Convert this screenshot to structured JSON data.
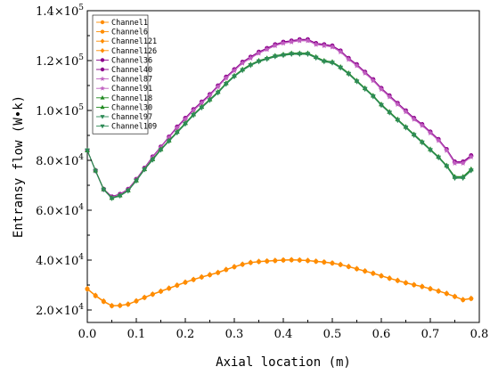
{
  "chart_data": {
    "type": "line",
    "xlabel": "Axial location (m)",
    "ylabel": "Entransy flow (W•k)",
    "xlim": [
      0,
      0.8
    ],
    "ylim": [
      15000,
      140000
    ],
    "x_ticks": [
      {
        "value": 0.0,
        "label": "0.0"
      },
      {
        "value": 0.1,
        "label": "0.1"
      },
      {
        "value": 0.2,
        "label": "0.2"
      },
      {
        "value": 0.3,
        "label": "0.3"
      },
      {
        "value": 0.4,
        "label": "0.4"
      },
      {
        "value": 0.5,
        "label": "0.5"
      },
      {
        "value": 0.6,
        "label": "0.6"
      },
      {
        "value": 0.7,
        "label": "0.7"
      },
      {
        "value": 0.8,
        "label": "0.8"
      }
    ],
    "y_ticks": [
      {
        "value": 20000,
        "mantissa": "2.0",
        "exponent": "4"
      },
      {
        "value": 40000,
        "mantissa": "4.0",
        "exponent": "4"
      },
      {
        "value": 60000,
        "mantissa": "6.0",
        "exponent": "4"
      },
      {
        "value": 80000,
        "mantissa": "8.0",
        "exponent": "4"
      },
      {
        "value": 100000,
        "mantissa": "1.0",
        "exponent": "5"
      },
      {
        "value": 120000,
        "mantissa": "1.2",
        "exponent": "5"
      },
      {
        "value": 140000,
        "mantissa": "1.4",
        "exponent": "5"
      }
    ],
    "grid": false,
    "legend_position": "top-left",
    "x": [
      0.0,
      0.0167,
      0.0333,
      0.05,
      0.0667,
      0.0833,
      0.1,
      0.1167,
      0.1333,
      0.15,
      0.1667,
      0.1833,
      0.2,
      0.2167,
      0.2333,
      0.25,
      0.2667,
      0.2833,
      0.3,
      0.3167,
      0.3333,
      0.35,
      0.3667,
      0.3833,
      0.4,
      0.4167,
      0.4333,
      0.45,
      0.4667,
      0.4833,
      0.5,
      0.5167,
      0.5333,
      0.55,
      0.5667,
      0.5833,
      0.6,
      0.6167,
      0.6333,
      0.65,
      0.6667,
      0.6833,
      0.7,
      0.7167,
      0.7333,
      0.75,
      0.7667,
      0.7833
    ],
    "series": [
      {
        "name": "Channel1",
        "color": "#FF8C00",
        "marker": "circle",
        "values": [
          28500,
          25800,
          23500,
          21700,
          21800,
          22300,
          23600,
          25000,
          26300,
          27500,
          28700,
          29900,
          31100,
          32200,
          33200,
          34100,
          35000,
          36200,
          37300,
          38300,
          39000,
          39400,
          39600,
          39800,
          40000,
          40100,
          40000,
          39800,
          39500,
          39200,
          38800,
          38200,
          37400,
          36500,
          35600,
          34700,
          33700,
          32700,
          31800,
          30900,
          30100,
          29400,
          28500,
          27600,
          26600,
          25400,
          24100,
          24600
        ]
      },
      {
        "name": "Channel6",
        "color": "#FF8C00",
        "marker": "circle",
        "values": [
          28300,
          25600,
          23300,
          21600,
          21700,
          22200,
          23500,
          24900,
          26200,
          27400,
          28600,
          29800,
          31000,
          32100,
          33100,
          34000,
          34900,
          36100,
          37200,
          38200,
          38900,
          39300,
          39500,
          39700,
          39900,
          40000,
          39900,
          39700,
          39400,
          39100,
          38700,
          38100,
          37300,
          36400,
          35500,
          34600,
          33600,
          32600,
          31700,
          30800,
          30000,
          29300,
          28400,
          27500,
          26500,
          25300,
          24000,
          24500
        ]
      },
      {
        "name": "Channel121",
        "color": "#FF8C00",
        "marker": "diamond",
        "values": [
          28400,
          25700,
          23400,
          21650,
          21750,
          22250,
          23550,
          24950,
          26250,
          27450,
          28650,
          29850,
          31050,
          32150,
          33150,
          34050,
          34950,
          36150,
          37250,
          38250,
          38950,
          39350,
          39550,
          39750,
          39950,
          40050,
          39950,
          39750,
          39450,
          39150,
          38750,
          38150,
          37350,
          36450,
          35550,
          34650,
          33650,
          32650,
          31750,
          30850,
          30050,
          29350,
          28450,
          27550,
          26550,
          25350,
          24050,
          24550
        ]
      },
      {
        "name": "Channel126",
        "color": "#FF8C00",
        "marker": "diamond",
        "values": [
          28600,
          25900,
          23600,
          21800,
          21900,
          22400,
          23700,
          25100,
          26400,
          27600,
          28800,
          30000,
          31200,
          32300,
          33300,
          34200,
          35100,
          36300,
          37400,
          38400,
          39100,
          39500,
          39700,
          39900,
          40100,
          40200,
          40100,
          39900,
          39600,
          39300,
          38900,
          38300,
          37500,
          36600,
          35700,
          34800,
          33800,
          32800,
          31900,
          31000,
          30200,
          29500,
          28600,
          27700,
          26700,
          25500,
          24200,
          24700
        ]
      },
      {
        "name": "Channel36",
        "color": "#8B008B",
        "marker": "circle",
        "values": [
          84000,
          76000,
          68500,
          65500,
          66500,
          68500,
          72500,
          77000,
          81500,
          85500,
          89500,
          93500,
          97000,
          100500,
          103500,
          106500,
          110000,
          113500,
          116500,
          119500,
          121500,
          123500,
          125000,
          126500,
          127500,
          128000,
          128500,
          128500,
          127000,
          126500,
          126000,
          124000,
          121000,
          118500,
          115500,
          112500,
          109000,
          106000,
          103000,
          100000,
          97000,
          94500,
          91500,
          88500,
          84500,
          79500,
          79500,
          82000
        ]
      },
      {
        "name": "Channel40",
        "color": "#8B008B",
        "marker": "circle",
        "values": [
          84000,
          75900,
          68400,
          65400,
          66400,
          68400,
          72400,
          76900,
          81300,
          85300,
          89300,
          93300,
          96800,
          100300,
          103300,
          106300,
          109800,
          113300,
          116300,
          119300,
          121300,
          123300,
          124800,
          126300,
          127300,
          127800,
          128300,
          128300,
          126800,
          126300,
          125800,
          123800,
          120800,
          118300,
          115300,
          112300,
          108800,
          105800,
          102800,
          99800,
          96800,
          94300,
          91300,
          88300,
          84300,
          79200,
          79200,
          81700
        ]
      },
      {
        "name": "Channel87",
        "color": "#C060C0",
        "marker": "star",
        "values": [
          84000,
          75800,
          68300,
          65300,
          66300,
          68300,
          72300,
          76800,
          81200,
          85200,
          89200,
          93100,
          96600,
          100100,
          103100,
          106100,
          109600,
          113100,
          116100,
          119100,
          121100,
          123100,
          124600,
          126100,
          127100,
          127600,
          128100,
          128100,
          126600,
          126100,
          125600,
          123600,
          120600,
          118100,
          115100,
          112100,
          108600,
          105600,
          102600,
          99600,
          96600,
          94100,
          91100,
          88100,
          84100,
          79000,
          79000,
          81500
        ]
      },
      {
        "name": "Channel91",
        "color": "#C060C0",
        "marker": "star",
        "values": [
          84000,
          75700,
          68200,
          65200,
          66200,
          68200,
          72200,
          76700,
          81100,
          85100,
          89100,
          92900,
          96400,
          99900,
          102900,
          105900,
          109400,
          112900,
          115900,
          118900,
          120900,
          122900,
          124400,
          125900,
          126900,
          127400,
          127900,
          127900,
          126400,
          125900,
          125400,
          123400,
          120400,
          117900,
          114900,
          111900,
          108400,
          105400,
          102400,
          99400,
          96400,
          93900,
          90900,
          87900,
          83900,
          78800,
          78800,
          81300
        ]
      },
      {
        "name": "Channel18",
        "color": "#228B22",
        "marker": "triangle-up",
        "values": [
          84000,
          76000,
          68500,
          65000,
          66000,
          68000,
          72000,
          76500,
          80500,
          84500,
          88000,
          91500,
          95000,
          98500,
          101500,
          104500,
          107500,
          111000,
          114000,
          116500,
          118500,
          120000,
          121000,
          122000,
          122500,
          123000,
          123000,
          123000,
          121500,
          120000,
          119500,
          117500,
          115000,
          112000,
          109000,
          106000,
          102500,
          99500,
          96500,
          93500,
          90500,
          87500,
          84500,
          81500,
          78000,
          73500,
          73500,
          76500
        ]
      },
      {
        "name": "Channel30",
        "color": "#228B22",
        "marker": "triangle-up",
        "values": [
          84000,
          75900,
          68400,
          64900,
          65900,
          67900,
          71900,
          76400,
          80400,
          84400,
          87900,
          91400,
          94900,
          98400,
          101400,
          104400,
          107400,
          110900,
          113900,
          116400,
          118400,
          119900,
          120900,
          121900,
          122400,
          122900,
          122900,
          122900,
          121400,
          119900,
          119400,
          117400,
          114900,
          111900,
          108900,
          105900,
          102400,
          99400,
          96400,
          93400,
          90400,
          87400,
          84400,
          81400,
          77900,
          73300,
          73300,
          76300
        ]
      },
      {
        "name": "Channel97",
        "color": "#2E8B57",
        "marker": "triangle-down",
        "values": [
          84000,
          75800,
          68300,
          64800,
          65800,
          67800,
          71800,
          76300,
          80200,
          84200,
          87700,
          91200,
          94700,
          98200,
          101200,
          104200,
          107200,
          110700,
          113700,
          116200,
          118200,
          119700,
          120700,
          121700,
          122200,
          122700,
          122700,
          122700,
          121200,
          119700,
          119200,
          117200,
          114700,
          111700,
          108700,
          105700,
          102200,
          99200,
          96200,
          93200,
          90200,
          87200,
          84200,
          81200,
          77700,
          73000,
          73000,
          76000
        ]
      },
      {
        "name": "Channel109",
        "color": "#2E8B57",
        "marker": "triangle-down",
        "values": [
          84000,
          75700,
          68200,
          64700,
          65700,
          67700,
          71700,
          76200,
          80100,
          84100,
          87600,
          91000,
          94500,
          98000,
          101000,
          104000,
          107000,
          110500,
          113500,
          116000,
          118000,
          119500,
          120500,
          121500,
          122000,
          122500,
          122500,
          122500,
          121000,
          119500,
          119000,
          117000,
          114500,
          111500,
          108500,
          105500,
          102000,
          99000,
          96000,
          93000,
          90000,
          87000,
          84000,
          81000,
          77500,
          72800,
          72800,
          75800
        ]
      }
    ]
  }
}
